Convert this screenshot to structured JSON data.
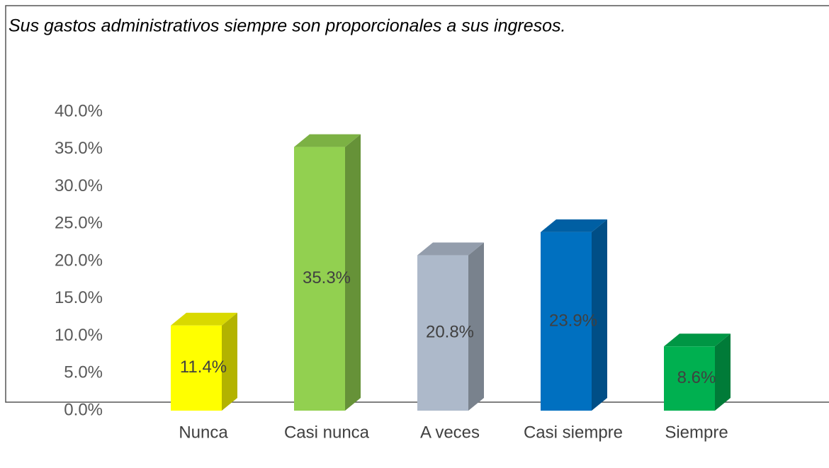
{
  "chart_data": {
    "type": "bar",
    "title": "Sus gastos administrativos siempre son proporcionales a sus ingresos.",
    "categories": [
      "Nunca",
      "Casi nunca",
      "A veces",
      "Casi siempre",
      "Siempre"
    ],
    "values": [
      11.4,
      35.3,
      20.8,
      23.9,
      8.6
    ],
    "value_labels": [
      "11.4%",
      "35.3%",
      "20.8%",
      "23.9%",
      "8.6%"
    ],
    "colors": [
      "#ffff00",
      "#92d050",
      "#adb9ca",
      "#0070c0",
      "#00b050"
    ],
    "ylim": [
      0,
      40
    ],
    "yticks": [
      {
        "value": 0,
        "label": "0.0%"
      },
      {
        "value": 5,
        "label": "5.0%"
      },
      {
        "value": 10,
        "label": "10.0%"
      },
      {
        "value": 15,
        "label": "15.0%"
      },
      {
        "value": 20,
        "label": "20.0%"
      },
      {
        "value": 25,
        "label": "25.0%"
      },
      {
        "value": 30,
        "label": "30.0%"
      },
      {
        "value": 35,
        "label": "35.0%"
      },
      {
        "value": 40,
        "label": "40.0%"
      }
    ],
    "grid": false
  }
}
